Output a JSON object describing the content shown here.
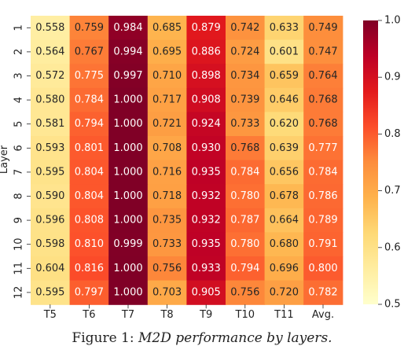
{
  "chart_data": {
    "type": "heatmap",
    "ylabel": "Layer",
    "x_categories": [
      "T5",
      "T6",
      "T7",
      "T8",
      "T9",
      "T10",
      "T11",
      "Avg."
    ],
    "y_categories": [
      "1",
      "2",
      "3",
      "4",
      "5",
      "6",
      "7",
      "8",
      "9",
      "10",
      "11",
      "12"
    ],
    "values": [
      [
        0.558,
        0.759,
        0.984,
        0.685,
        0.879,
        0.742,
        0.633,
        0.749
      ],
      [
        0.564,
        0.767,
        0.994,
        0.695,
        0.886,
        0.724,
        0.601,
        0.747
      ],
      [
        0.572,
        0.775,
        0.997,
        0.71,
        0.898,
        0.734,
        0.659,
        0.764
      ],
      [
        0.58,
        0.784,
        1.0,
        0.717,
        0.908,
        0.739,
        0.646,
        0.768
      ],
      [
        0.581,
        0.794,
        1.0,
        0.721,
        0.924,
        0.733,
        0.62,
        0.768
      ],
      [
        0.593,
        0.801,
        1.0,
        0.708,
        0.93,
        0.768,
        0.639,
        0.777
      ],
      [
        0.595,
        0.804,
        1.0,
        0.716,
        0.935,
        0.784,
        0.656,
        0.784
      ],
      [
        0.59,
        0.804,
        1.0,
        0.718,
        0.932,
        0.78,
        0.678,
        0.786
      ],
      [
        0.596,
        0.808,
        1.0,
        0.735,
        0.932,
        0.787,
        0.664,
        0.789
      ],
      [
        0.598,
        0.81,
        0.999,
        0.733,
        0.935,
        0.78,
        0.68,
        0.791
      ],
      [
        0.604,
        0.816,
        1.0,
        0.756,
        0.933,
        0.794,
        0.696,
        0.8
      ],
      [
        0.595,
        0.797,
        1.0,
        0.703,
        0.905,
        0.756,
        0.72,
        0.782
      ]
    ],
    "value_labels": [
      [
        "0.558",
        "0.759",
        "0.984",
        "0.685",
        "0.879",
        "0.742",
        "0.633",
        "0.749"
      ],
      [
        "0.564",
        "0.767",
        "0.994",
        "0.695",
        "0.886",
        "0.724",
        "0.601",
        "0.747"
      ],
      [
        "0.572",
        "0.775",
        "0.997",
        "0.710",
        "0.898",
        "0.734",
        "0.659",
        "0.764"
      ],
      [
        "0.580",
        "0.784",
        "1.000",
        "0.717",
        "0.908",
        "0.739",
        "0.646",
        "0.768"
      ],
      [
        "0.581",
        "0.794",
        "1.000",
        "0.721",
        "0.924",
        "0.733",
        "0.620",
        "0.768"
      ],
      [
        "0.593",
        "0.801",
        "1.000",
        "0.708",
        "0.930",
        "0.768",
        "0.639",
        "0.777"
      ],
      [
        "0.595",
        "0.804",
        "1.000",
        "0.716",
        "0.935",
        "0.784",
        "0.656",
        "0.784"
      ],
      [
        "0.590",
        "0.804",
        "1.000",
        "0.718",
        "0.932",
        "0.780",
        "0.678",
        "0.786"
      ],
      [
        "0.596",
        "0.808",
        "1.000",
        "0.735",
        "0.932",
        "0.787",
        "0.664",
        "0.789"
      ],
      [
        "0.598",
        "0.810",
        "0.999",
        "0.733",
        "0.935",
        "0.780",
        "0.680",
        "0.791"
      ],
      [
        "0.604",
        "0.816",
        "1.000",
        "0.756",
        "0.933",
        "0.794",
        "0.696",
        "0.800"
      ],
      [
        "0.595",
        "0.797",
        "1.000",
        "0.703",
        "0.905",
        "0.756",
        "0.720",
        "0.782"
      ]
    ],
    "colorbar": {
      "range": [
        0.5,
        1.0
      ],
      "ticks": [
        0.5,
        0.6,
        0.7,
        0.8,
        0.9,
        1.0
      ],
      "tick_labels": [
        "0.5",
        "0.6",
        "0.7",
        "0.8",
        "0.9",
        "1.0"
      ]
    },
    "colormap": "YlOrRd",
    "colormap_stops": [
      "#ffffcc",
      "#ffeda0",
      "#fed976",
      "#feb24c",
      "#fd8d3c",
      "#fc4e2a",
      "#e31a1c",
      "#bd0026",
      "#800026"
    ]
  },
  "caption": {
    "prefix": "Figure 1: ",
    "text": "M2D performance by layers."
  }
}
